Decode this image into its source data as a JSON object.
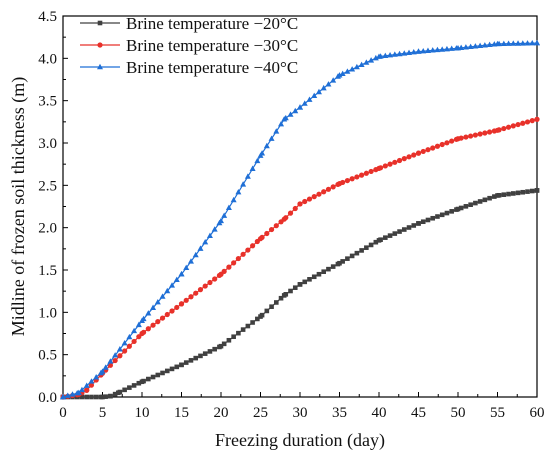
{
  "chart_data": {
    "type": "line",
    "title": "",
    "xlabel": "Freezing duration (day)",
    "ylabel": "Midline of frozen soil thickness (m)",
    "xlim": [
      0,
      60
    ],
    "ylim": [
      0,
      4.5
    ],
    "xticks": [
      0,
      5,
      10,
      15,
      20,
      25,
      30,
      35,
      40,
      45,
      50,
      55,
      60
    ],
    "yticks": [
      0.0,
      0.5,
      1.0,
      1.5,
      2.0,
      2.5,
      3.0,
      3.5,
      4.0,
      4.5
    ],
    "xtick_labels": [
      "0",
      "5",
      "10",
      "15",
      "20",
      "25",
      "30",
      "35",
      "40",
      "45",
      "50",
      "55",
      "60"
    ],
    "ytick_labels": [
      "0.0",
      "0.5",
      "1.0",
      "1.5",
      "2.0",
      "2.5",
      "3.0",
      "3.5",
      "4.0",
      "4.5"
    ],
    "grid": false,
    "legend_position": "top-left",
    "series": [
      {
        "name": "Brine temperature −20°C",
        "color": "#404040",
        "marker": "square",
        "x": [
          0,
          5,
          6,
          7,
          10,
          15,
          20,
          25,
          28,
          30,
          35,
          40,
          45,
          50,
          55,
          60
        ],
        "y": [
          0,
          0,
          0.01,
          0.05,
          0.18,
          0.38,
          0.6,
          0.95,
          1.2,
          1.33,
          1.58,
          1.85,
          2.05,
          2.22,
          2.38,
          2.44
        ]
      },
      {
        "name": "Brine temperature −30°C",
        "color": "#e8312a",
        "marker": "circle",
        "x": [
          0,
          2,
          3,
          5,
          10,
          15,
          20,
          25,
          28,
          30,
          35,
          40,
          45,
          50,
          55,
          60
        ],
        "y": [
          0,
          0.03,
          0.08,
          0.28,
          0.75,
          1.1,
          1.45,
          1.87,
          2.1,
          2.28,
          2.52,
          2.7,
          2.88,
          3.05,
          3.15,
          3.28
        ]
      },
      {
        "name": "Brine temperature −40°C",
        "color": "#1f6fd6",
        "marker": "triangle",
        "x": [
          0,
          2,
          5,
          10,
          15,
          20,
          25,
          28,
          30,
          35,
          40,
          45,
          50,
          55,
          60
        ],
        "y": [
          0,
          0.05,
          0.3,
          0.9,
          1.45,
          2.08,
          2.85,
          3.28,
          3.42,
          3.8,
          4.02,
          4.08,
          4.12,
          4.17,
          4.18
        ]
      }
    ]
  }
}
